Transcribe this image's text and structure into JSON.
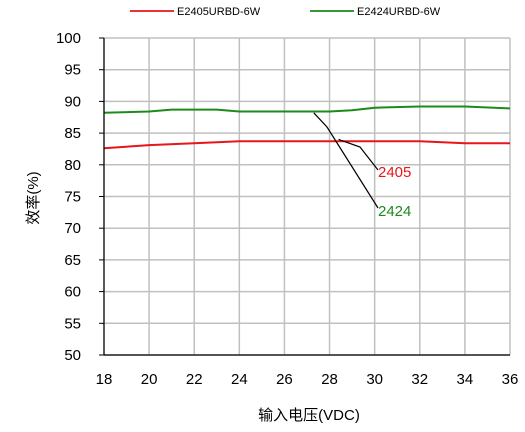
{
  "chart_data": {
    "type": "line",
    "xlabel": "输入电压(VDC)",
    "ylabel": "效率(%)",
    "xlim": [
      18,
      36
    ],
    "ylim": [
      50,
      100
    ],
    "x_ticks": [
      "18",
      "20",
      "22",
      "24",
      "26",
      "28",
      "30",
      "32",
      "34",
      "36"
    ],
    "y_ticks": [
      "50",
      "55",
      "60",
      "65",
      "70",
      "75",
      "80",
      "85",
      "90",
      "95",
      "100"
    ],
    "grid": true,
    "legend_position": "top",
    "series": [
      {
        "name": "E2405URBD-6W",
        "color": "#e8151b",
        "x": [
          18,
          20,
          22,
          24,
          26,
          28,
          30,
          32,
          34,
          36
        ],
        "y": [
          82.6,
          83.1,
          83.4,
          83.7,
          83.7,
          83.7,
          83.7,
          83.7,
          83.4,
          83.4
        ]
      },
      {
        "name": "E2424URBD-6W",
        "color": "#1c8a1c",
        "x": [
          18,
          20,
          21,
          23,
          24,
          26,
          28,
          29,
          30,
          32,
          34,
          36
        ],
        "y": [
          88.2,
          88.4,
          88.7,
          88.7,
          88.4,
          88.4,
          88.4,
          88.6,
          89.0,
          89.2,
          89.2,
          88.9
        ]
      }
    ],
    "annotations": [
      {
        "text": "2405",
        "color": "#e8151b",
        "points_to": "E2405URBD-6W"
      },
      {
        "text": "2424",
        "color": "#1c8a1c",
        "points_to": "E2424URBD-6W"
      }
    ]
  }
}
